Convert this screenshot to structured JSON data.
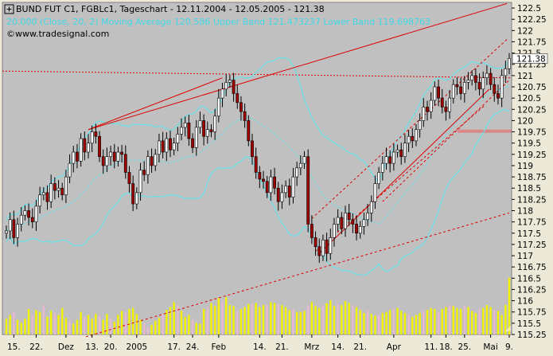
{
  "header": {
    "title": "BUND FUT C1, FGBLc1, Tageschart - 12.11.2004 - 12.05.2005 - 121.38",
    "indicator": "20.000 (Close, 20, 2) Moving Average 120.586 Upper Band 121.473237 Lower Band 119.698763",
    "source": "www.tradesignal.com"
  },
  "colors": {
    "plot_bg": "#c0c0c0",
    "frame_bg": "#ece9d8",
    "candle_up": "#ffffff",
    "candle_down": "#a00000",
    "band": "#66e0e8",
    "trendline": "#dd0000",
    "volume": "#f2f200",
    "volume_light": "#e8b8d0",
    "price_label_bg": "#ffffff"
  },
  "chart_data": {
    "type": "candlestick",
    "title": "BUND FUT C1, FGBLc1, Tageschart - 12.11.2004 - 12.05.2005 - 121.38",
    "ylim": [
      115.25,
      122.625
    ],
    "y_ticks": [
      "122.5",
      "122.25",
      "122",
      "121.75",
      "121.5",
      "121.25",
      "121",
      "120.75",
      "120.5",
      "120.25",
      "120",
      "119.75",
      "119.5",
      "119.25",
      "119",
      "118.75",
      "118.5",
      "118.25",
      "118",
      "117.75",
      "117.5",
      "117.25",
      "117",
      "116.75",
      "116.5",
      "116.25",
      "116",
      "115.75",
      "115.5",
      "115.25"
    ],
    "last_price": 121.38,
    "x_labels": [
      "15.",
      "22.",
      "Dez",
      "13.",
      "20.",
      "2005",
      "17.",
      "24.",
      "Feb",
      "14.",
      "21.",
      "Mrz",
      "14.",
      "21.",
      "Apr",
      "11.",
      "18.",
      "25.",
      "Mai",
      "9."
    ],
    "x_label_idx": [
      2,
      8,
      16,
      23,
      28,
      35,
      45,
      50,
      57,
      68,
      74,
      82,
      89,
      95,
      104,
      114,
      118,
      123,
      130,
      135
    ],
    "closes": [
      117.55,
      117.8,
      117.4,
      117.7,
      117.9,
      118.0,
      117.85,
      117.75,
      118.1,
      118.35,
      118.4,
      118.2,
      118.6,
      118.45,
      118.5,
      118.35,
      118.75,
      119.05,
      119.3,
      119.1,
      119.6,
      119.3,
      119.5,
      119.75,
      119.65,
      119.2,
      119.0,
      119.2,
      119.3,
      119.1,
      119.3,
      119.25,
      118.85,
      118.6,
      118.15,
      118.4,
      118.9,
      118.8,
      119.2,
      119.0,
      119.25,
      119.55,
      119.3,
      119.6,
      119.35,
      119.5,
      119.7,
      119.85,
      119.95,
      119.6,
      119.4,
      119.85,
      120.0,
      119.65,
      119.8,
      119.75,
      120.1,
      120.5,
      120.7,
      120.85,
      120.9,
      120.6,
      120.4,
      120.2,
      120.0,
      119.55,
      119.2,
      118.85,
      118.7,
      118.65,
      118.4,
      118.75,
      118.5,
      118.2,
      118.4,
      118.55,
      118.3,
      118.75,
      118.95,
      119.05,
      119.2,
      117.7,
      117.4,
      117.2,
      117.0,
      117.35,
      117.05,
      117.4,
      117.7,
      117.85,
      117.6,
      117.95,
      117.8,
      117.7,
      117.5,
      117.65,
      117.8,
      117.95,
      118.2,
      118.6,
      118.85,
      119.05,
      119.2,
      119.05,
      119.3,
      119.35,
      119.2,
      119.5,
      119.65,
      119.55,
      119.8,
      120.0,
      120.3,
      120.2,
      120.45,
      120.75,
      120.5,
      120.3,
      120.2,
      120.5,
      120.8,
      120.75,
      120.6,
      120.85,
      120.9,
      121.0,
      120.85,
      120.7,
      120.95,
      121.05,
      120.8,
      120.6,
      120.5,
      121.0,
      121.15,
      121.38
    ],
    "volume_max": 650000,
    "volume": [
      160000,
      200000,
      230000,
      150000,
      120000,
      160000,
      260000,
      200000,
      250000,
      230000,
      300000,
      180000,
      240000,
      220000,
      200000,
      270000,
      170000,
      140000,
      110000,
      150000,
      230000,
      180000,
      200000,
      160000,
      210000,
      190000,
      150000,
      210000,
      170000,
      130000,
      200000,
      240000,
      220000,
      260000,
      270000,
      210000,
      150000,
      120000,
      80000,
      100000,
      140000,
      170000,
      210000,
      250000,
      280000,
      330000,
      300000,
      240000,
      180000,
      200000,
      150000,
      120000,
      110000,
      260000,
      280000,
      320000,
      290000,
      370000,
      340000,
      380000,
      300000,
      290000,
      240000,
      260000,
      280000,
      310000,
      320000,
      320000,
      280000,
      300000,
      300000,
      330000,
      320000,
      310000,
      300000,
      280000,
      250000,
      260000,
      230000,
      230000,
      240000,
      300000,
      330000,
      290000,
      270000,
      300000,
      320000,
      350000,
      290000,
      310000,
      300000,
      340000,
      320000,
      300000,
      280000,
      250000,
      220000,
      240000,
      210000,
      190000,
      200000,
      220000,
      230000,
      250000,
      260000,
      270000,
      240000,
      220000,
      200000,
      180000,
      200000,
      220000,
      240000,
      250000,
      270000,
      260000,
      230000,
      260000,
      280000,
      300000,
      290000,
      270000,
      260000,
      300000,
      280000,
      240000,
      220000,
      260000,
      270000,
      300000,
      280000,
      250000,
      240000,
      200000,
      300000,
      580000
    ],
    "volume_light": [
      false,
      false,
      true,
      false,
      false,
      false,
      false,
      true,
      false,
      false,
      true,
      false,
      false,
      true,
      false,
      false,
      false,
      true,
      false,
      false,
      false,
      true,
      false,
      false,
      false,
      true,
      false,
      false,
      true,
      false,
      false,
      false,
      true,
      false,
      false,
      false,
      false,
      true,
      true,
      false,
      false,
      false,
      true,
      false,
      false,
      false,
      true,
      false,
      false,
      false,
      true,
      false,
      false,
      false,
      true,
      false,
      false,
      false,
      true,
      false,
      false,
      false,
      true,
      false,
      false,
      false,
      true,
      false,
      false,
      false,
      true,
      false,
      false,
      true,
      false,
      false,
      false,
      true,
      false,
      false,
      false,
      true,
      false,
      false,
      false,
      true,
      false,
      false,
      false,
      true,
      false,
      false,
      false,
      true,
      false,
      false,
      false,
      true,
      false,
      false,
      true,
      false,
      false,
      false,
      true,
      false,
      false,
      false,
      true,
      false,
      false,
      false,
      true,
      false,
      false,
      false,
      true,
      false,
      false,
      true,
      false,
      false,
      false,
      true,
      false,
      false,
      false,
      true,
      false,
      false,
      false,
      true,
      false,
      false,
      false,
      false
    ]
  }
}
